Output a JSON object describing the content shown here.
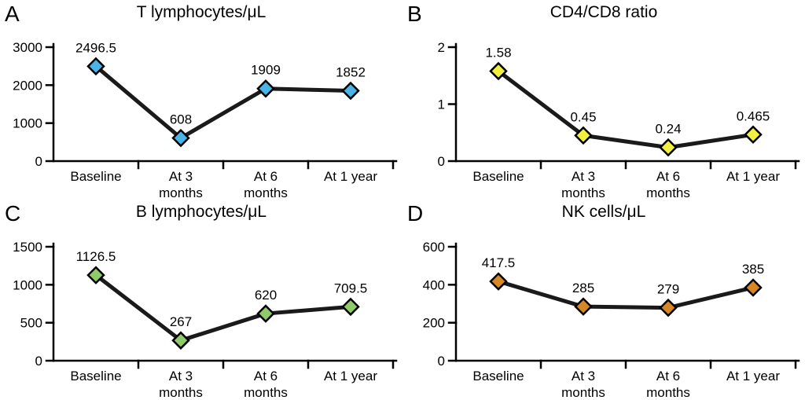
{
  "figure": {
    "background": "#ffffff",
    "axis_color": "#000000",
    "text_color": "#000000"
  },
  "chart_data": [
    {
      "type": "line",
      "panel_label": "A",
      "title": "T lymphocytes/μL",
      "categories": [
        "Baseline",
        "At 3\nmonths",
        "At 6\nmonths",
        "At 1 year"
      ],
      "values": [
        2496.5,
        608,
        1909,
        1852
      ],
      "ylim": [
        0,
        3000
      ],
      "yticks": [
        0,
        1000,
        2000,
        3000
      ],
      "marker_color": "#4ab4e6",
      "line_color": "#1a1a1a",
      "grid": false,
      "legend": "none"
    },
    {
      "type": "line",
      "panel_label": "B",
      "title": "CD4/CD8 ratio",
      "categories": [
        "Baseline",
        "At 3\nmonths",
        "At 6\nmonths",
        "At 1 year"
      ],
      "values": [
        1.58,
        0.45,
        0.24,
        0.465
      ],
      "ylim": [
        0,
        2
      ],
      "yticks": [
        0,
        1,
        2
      ],
      "marker_color": "#f2ef40",
      "line_color": "#1a1a1a",
      "grid": false,
      "legend": "none"
    },
    {
      "type": "line",
      "panel_label": "C",
      "title": "B lymphocytes/μL",
      "categories": [
        "Baseline",
        "At 3\nmonths",
        "At 6\nmonths",
        "At 1 year"
      ],
      "values": [
        1126.5,
        267,
        620,
        709.5
      ],
      "ylim": [
        0,
        1500
      ],
      "yticks": [
        0,
        500,
        1000,
        1500
      ],
      "marker_color": "#8fca6b",
      "line_color": "#1a1a1a",
      "grid": false,
      "legend": "none"
    },
    {
      "type": "line",
      "panel_label": "D",
      "title": "NK cells/μL",
      "categories": [
        "Baseline",
        "At 3\nmonths",
        "At 6\nmonths",
        "At 1 year"
      ],
      "values": [
        417.5,
        285,
        279,
        385
      ],
      "ylim": [
        0,
        600
      ],
      "yticks": [
        0,
        200,
        400,
        600
      ],
      "marker_color": "#d68727",
      "line_color": "#1a1a1a",
      "grid": false,
      "legend": "none"
    }
  ]
}
